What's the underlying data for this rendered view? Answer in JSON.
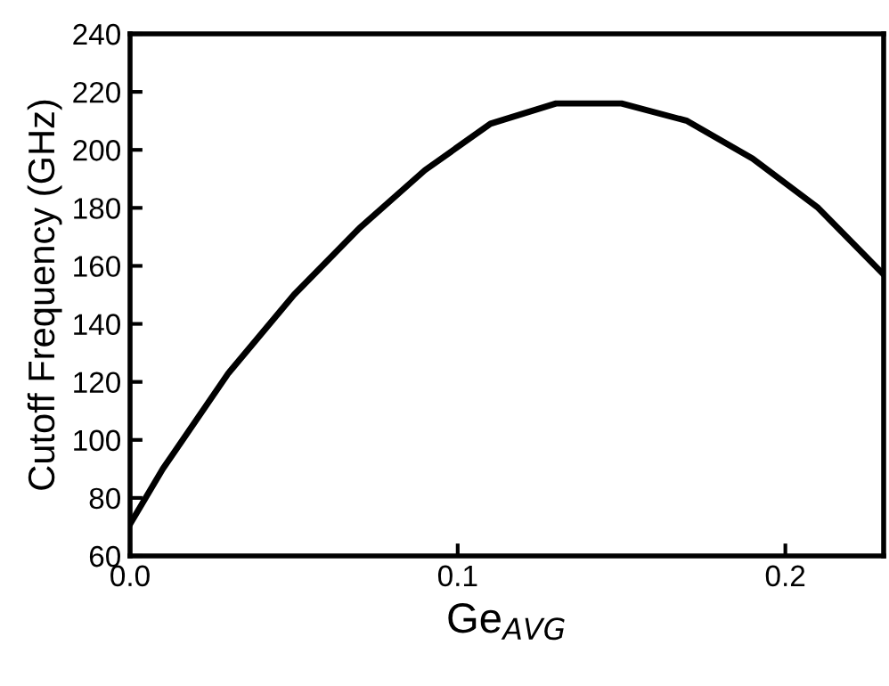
{
  "chart_data": {
    "type": "line",
    "xlabel": "Ge$_{AVG}$",
    "ylabel": "Cutoff Frequency (GHz)",
    "x": [
      0,
      0.01,
      0.03,
      0.05,
      0.07,
      0.09,
      0.11,
      0.13,
      0.15,
      0.17,
      0.19,
      0.21,
      0.23
    ],
    "series": [
      {
        "color": "#000000",
        "values": [
          71,
          90,
          123,
          150,
          173,
          193,
          209,
          216,
          216,
          210,
          197,
          180,
          157
        ]
      }
    ],
    "xlim": [
      0,
      0.23
    ],
    "ylim": [
      60,
      240
    ],
    "xticks": [
      {
        "value": 0,
        "label": "0.0"
      },
      0.1,
      0.2
    ],
    "yticks": [
      60,
      80,
      100,
      120,
      140,
      160,
      180,
      200,
      220,
      240
    ],
    "grid": false,
    "legend": false,
    "marker": "none",
    "line_style": "solid"
  }
}
